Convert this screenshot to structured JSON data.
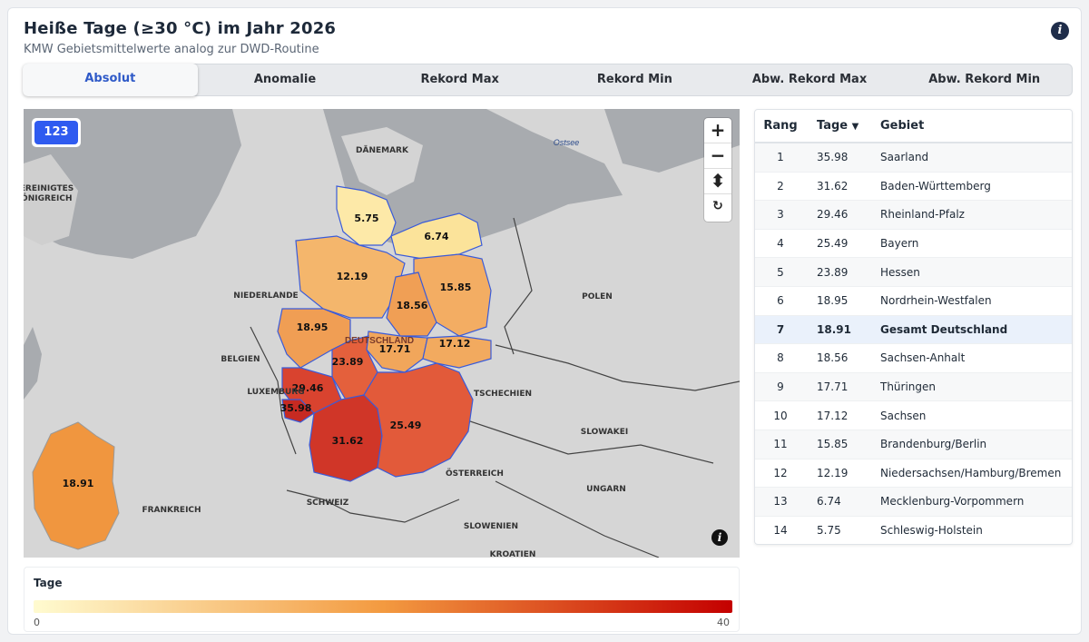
{
  "header": {
    "title": "Heiße Tage (≥30 °C) im Jahr 2026",
    "subtitle": "KMW Gebietsmittelwerte analog zur DWD-Routine",
    "info_icon": "i"
  },
  "tabs": [
    {
      "label": "Absolut",
      "active": true
    },
    {
      "label": "Anomalie"
    },
    {
      "label": "Rekord Max"
    },
    {
      "label": "Rekord Min"
    },
    {
      "label": "Abw. Rekord Max"
    },
    {
      "label": "Abw. Rekord Min"
    }
  ],
  "map": {
    "badge": "123",
    "zoom_in": "+",
    "zoom_out": "−",
    "compass": "⬍",
    "reset": "↻",
    "attribution": "i",
    "germany_label": "DEUTSCHLAND",
    "sea_label": "Ostsee",
    "countries": {
      "daenemark": "DÄNEMARK",
      "niederlande": "NIEDERLANDE",
      "belgien": "BELGIEN",
      "luxemburg": "LUXEMBURG",
      "polen": "POLEN",
      "tschechien": "TSCHECHIEN",
      "slowakei": "SLOWAKEI",
      "oesterreich": "ÖSTERREICH",
      "schweiz": "SCHWEIZ",
      "frankreich": "FRANKREICH",
      "ungarn": "UNGARN",
      "slowenien": "SLOWENIEN",
      "kroatien": "KROATIEN",
      "vk1": "VEREINIGTES",
      "vk2": "KÖNIGREICH"
    },
    "values": {
      "sh": "5.75",
      "mv": "6.74",
      "ni": "12.19",
      "bb": "15.85",
      "st": "18.56",
      "nw": "18.95",
      "th": "17.71",
      "sn": "17.12",
      "he": "23.89",
      "rp": "29.46",
      "sl": "35.98",
      "bw": "31.62",
      "by": "25.49",
      "de": "18.91"
    },
    "colors": {
      "sh": "#fde9a8",
      "mv": "#fbe39a",
      "ni": "#f4b66c",
      "bb": "#f3ad63",
      "st": "#f09f55",
      "nw": "#f09e54",
      "th": "#f1a65b",
      "sn": "#f2aa5f",
      "he": "#e4603c",
      "rp": "#d9432f",
      "sl": "#c62a22",
      "bw": "#d03628",
      "by": "#e25a3a",
      "de": "#f0963f"
    }
  },
  "legend": {
    "title": "Tage",
    "min": "0",
    "max": "40",
    "gradient_start": "#fffbd0",
    "gradient_mid": "#f39a40",
    "gradient_end": "#c40000"
  },
  "table": {
    "headers": {
      "rank": "Rang",
      "days": "Tage",
      "sort": "▼",
      "region": "Gebiet"
    },
    "rows": [
      {
        "rank": "1",
        "days": "35.98",
        "region": "Saarland"
      },
      {
        "rank": "2",
        "days": "31.62",
        "region": "Baden-Württemberg"
      },
      {
        "rank": "3",
        "days": "29.46",
        "region": "Rheinland-Pfalz"
      },
      {
        "rank": "4",
        "days": "25.49",
        "region": "Bayern"
      },
      {
        "rank": "5",
        "days": "23.89",
        "region": "Hessen"
      },
      {
        "rank": "6",
        "days": "18.95",
        "region": "Nordrhein-Westfalen"
      },
      {
        "rank": "7",
        "days": "18.91",
        "region": "Gesamt Deutschland",
        "highlight": true
      },
      {
        "rank": "8",
        "days": "18.56",
        "region": "Sachsen-Anhalt"
      },
      {
        "rank": "9",
        "days": "17.71",
        "region": "Thüringen"
      },
      {
        "rank": "10",
        "days": "17.12",
        "region": "Sachsen"
      },
      {
        "rank": "11",
        "days": "15.85",
        "region": "Brandenburg/Berlin"
      },
      {
        "rank": "12",
        "days": "12.19",
        "region": "Niedersachsen/Hamburg/Bremen"
      },
      {
        "rank": "13",
        "days": "6.74",
        "region": "Mecklenburg-Vorpommern"
      },
      {
        "rank": "14",
        "days": "5.75",
        "region": "Schleswig-Holstein"
      }
    ]
  }
}
